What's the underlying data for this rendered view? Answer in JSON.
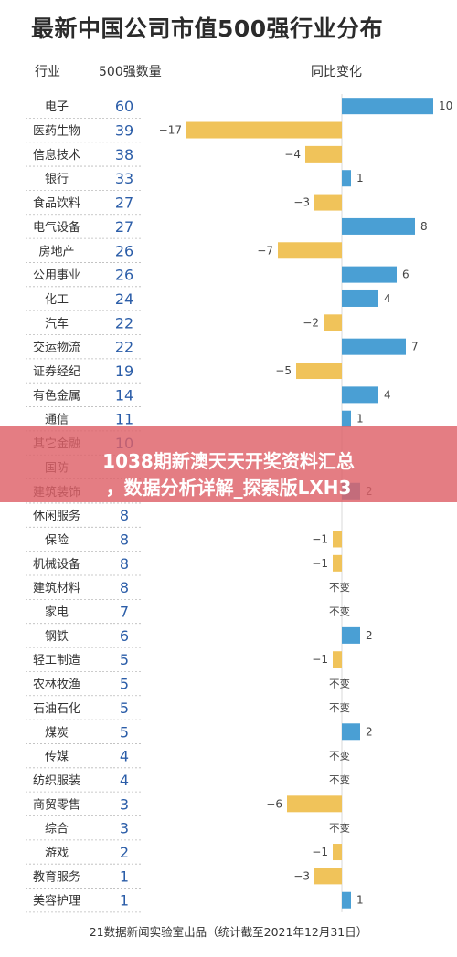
{
  "chart_data": {
    "type": "bar",
    "title": "最新中国公司市值500强行业分布",
    "columns": {
      "industry": "行业",
      "count": "500强数量",
      "change": "同比变化"
    },
    "no_change_label": "不变",
    "rows": [
      {
        "industry": "电子",
        "count": 60,
        "change": 10
      },
      {
        "industry": "医药生物",
        "count": 39,
        "change": -17
      },
      {
        "industry": "信息技术",
        "count": 38,
        "change": -4
      },
      {
        "industry": "银行",
        "count": 33,
        "change": 1
      },
      {
        "industry": "食品饮料",
        "count": 27,
        "change": -3
      },
      {
        "industry": "电气设备",
        "count": 27,
        "change": 8
      },
      {
        "industry": "房地产",
        "count": 26,
        "change": -7
      },
      {
        "industry": "公用事业",
        "count": 26,
        "change": 6
      },
      {
        "industry": "化工",
        "count": 24,
        "change": 4
      },
      {
        "industry": "汽车",
        "count": 22,
        "change": -2
      },
      {
        "industry": "交运物流",
        "count": 22,
        "change": 7
      },
      {
        "industry": "证券经纪",
        "count": 19,
        "change": -5
      },
      {
        "industry": "有色金属",
        "count": 14,
        "change": 4
      },
      {
        "industry": "通信",
        "count": 11,
        "change": 1
      },
      {
        "industry": "其它金融",
        "count": 10,
        "change": null
      },
      {
        "industry": "国防",
        "count": null,
        "change": null
      },
      {
        "industry": "建筑装饰",
        "count": null,
        "change": 2
      },
      {
        "industry": "休闲服务",
        "count": 8,
        "change": null
      },
      {
        "industry": "保险",
        "count": 8,
        "change": -1
      },
      {
        "industry": "机械设备",
        "count": 8,
        "change": -1
      },
      {
        "industry": "建筑材料",
        "count": 8,
        "change": 0
      },
      {
        "industry": "家电",
        "count": 7,
        "change": 0
      },
      {
        "industry": "钢铁",
        "count": 6,
        "change": 2
      },
      {
        "industry": "轻工制造",
        "count": 5,
        "change": -1
      },
      {
        "industry": "农林牧渔",
        "count": 5,
        "change": 0
      },
      {
        "industry": "石油石化",
        "count": 5,
        "change": 0
      },
      {
        "industry": "煤炭",
        "count": 5,
        "change": 2
      },
      {
        "industry": "传媒",
        "count": 4,
        "change": 0
      },
      {
        "industry": "纺织服装",
        "count": 4,
        "change": 0
      },
      {
        "industry": "商贸零售",
        "count": 3,
        "change": -6
      },
      {
        "industry": "综合",
        "count": 3,
        "change": 0
      },
      {
        "industry": "游戏",
        "count": 2,
        "change": -1
      },
      {
        "industry": "教育服务",
        "count": 1,
        "change": -3
      },
      {
        "industry": "美容护理",
        "count": 1,
        "change": 1
      }
    ],
    "xlim": [
      -17,
      10
    ],
    "colors": {
      "positive": "#4a9fd4",
      "negative": "#f0c35a",
      "count_text": "#2b5da8"
    },
    "grid": false
  },
  "footer": "21数据新闻实验室出品（统计截至2021年12月31日）",
  "banner": {
    "line1": "1038期新澳天天开奖资料汇总",
    "line2": "，数据分析详解_探索版LXH3"
  }
}
